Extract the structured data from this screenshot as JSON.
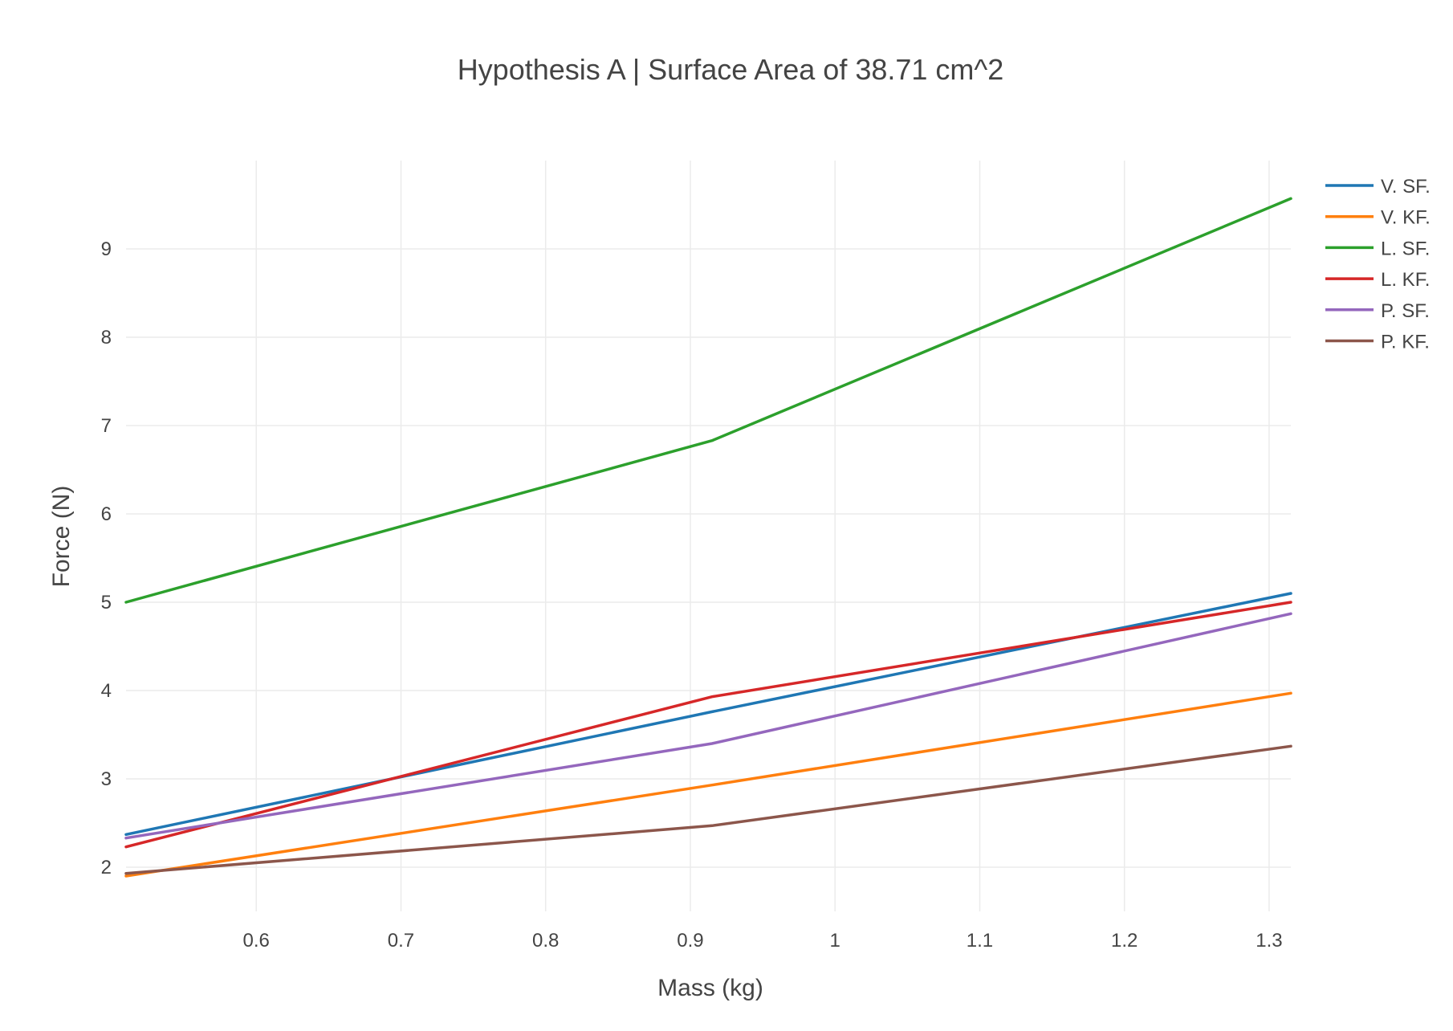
{
  "chart_data": {
    "type": "line",
    "title": "Hypothesis A | Surface Area of 38.71 cm^2",
    "xlabel": "Mass (kg)",
    "ylabel": "Force (N)",
    "xlim": [
      0.51,
      1.315
    ],
    "ylim": [
      1.5,
      10.0
    ],
    "x_ticks": [
      0.6,
      0.7,
      0.8,
      0.9,
      1,
      1.1,
      1.2,
      1.3
    ],
    "x_tick_labels": [
      "0.6",
      "0.7",
      "0.8",
      "0.9",
      "1",
      "1.1",
      "1.2",
      "1.3"
    ],
    "y_ticks": [
      2,
      3,
      4,
      5,
      6,
      7,
      8,
      9
    ],
    "y_tick_labels": [
      "2",
      "3",
      "4",
      "5",
      "6",
      "7",
      "8",
      "9"
    ],
    "grid": true,
    "legend_position": "top-right",
    "x": [
      0.51,
      0.915,
      1.315
    ],
    "series": [
      {
        "name": "V. SF.",
        "color": "#1f77b4",
        "values": [
          2.37,
          3.76,
          5.1
        ]
      },
      {
        "name": "V. KF.",
        "color": "#ff7f0e",
        "values": [
          1.9,
          2.93,
          3.97
        ]
      },
      {
        "name": "L. SF.",
        "color": "#2ca02c",
        "values": [
          5.0,
          6.83,
          9.57
        ]
      },
      {
        "name": "L. KF.",
        "color": "#d62728",
        "values": [
          2.23,
          3.93,
          5.0
        ]
      },
      {
        "name": "P. SF.",
        "color": "#9467bd",
        "values": [
          2.33,
          3.4,
          4.87
        ]
      },
      {
        "name": "P. KF.",
        "color": "#8c564b",
        "values": [
          1.93,
          2.47,
          3.37
        ]
      }
    ]
  }
}
